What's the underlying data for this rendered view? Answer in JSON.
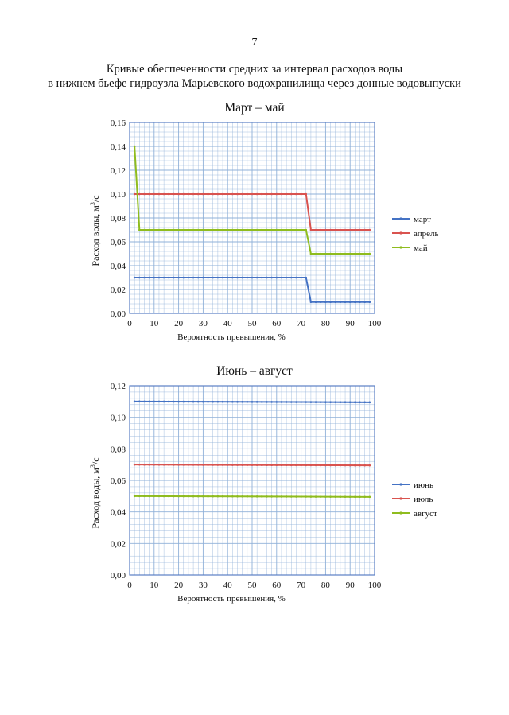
{
  "page": {
    "number": "7",
    "title_line1": "Кривые обеспеченности средних за интервал расходов воды",
    "title_line2": "в нижнем бьефе гидроузла Марьевского водохранилища через донные водовыпуски"
  },
  "colors": {
    "blue": "#4472c4",
    "red": "#d9534f",
    "green": "#8fbc1e",
    "grid": "#8fb0d8",
    "frame": "#5b7fc4"
  },
  "chart_data": [
    {
      "type": "line",
      "title": "Март – май",
      "xlabel": "Вероятность превышения, %",
      "ylabel_prefix": "Расход воды, м",
      "ylabel_sup": "3",
      "ylabel_suffix": "/с",
      "xlim": [
        0,
        100
      ],
      "ylim": [
        0,
        0.16
      ],
      "grid": true,
      "legend": "right",
      "x_ticks": [
        "0",
        "10",
        "20",
        "30",
        "40",
        "50",
        "60",
        "70",
        "80",
        "90",
        "100"
      ],
      "y_ticks": [
        "0,00",
        "0,02",
        "0,04",
        "0,06",
        "0,08",
        "0,10",
        "0,12",
        "0,14",
        "0,16"
      ],
      "series": [
        {
          "name": "март",
          "color": "#4472c4",
          "points": [
            [
              2,
              0.03
            ],
            [
              71,
              0.03
            ],
            [
              72,
              0.03
            ],
            [
              74,
              0.0095
            ],
            [
              98,
              0.0095
            ]
          ]
        },
        {
          "name": "апрель",
          "color": "#d9534f",
          "points": [
            [
              2,
              0.1
            ],
            [
              71,
              0.1
            ],
            [
              72,
              0.1
            ],
            [
              74,
              0.07
            ],
            [
              98,
              0.07
            ]
          ]
        },
        {
          "name": "май",
          "color": "#8fbc1e",
          "points": [
            [
              2,
              0.14
            ],
            [
              4,
              0.07
            ],
            [
              72,
              0.07
            ],
            [
              74,
              0.05
            ],
            [
              98,
              0.05
            ]
          ]
        }
      ]
    },
    {
      "type": "line",
      "title": "Июнь – август",
      "xlabel": "Вероятность превышения, %",
      "ylabel_prefix": "Расход воды, м",
      "ylabel_sup": "3",
      "ylabel_suffix": "/с",
      "xlim": [
        0,
        100
      ],
      "ylim": [
        0,
        0.12
      ],
      "grid": true,
      "legend": "right",
      "x_ticks": [
        "0",
        "10",
        "20",
        "30",
        "40",
        "50",
        "60",
        "70",
        "80",
        "90",
        "100"
      ],
      "y_ticks": [
        "0,00",
        "0,02",
        "0,04",
        "0,06",
        "0,08",
        "0,10",
        "0,12"
      ],
      "series": [
        {
          "name": "июнь",
          "color": "#4472c4",
          "points": [
            [
              2,
              0.11
            ],
            [
              98,
              0.1095
            ]
          ]
        },
        {
          "name": "июль",
          "color": "#d9534f",
          "points": [
            [
              2,
              0.07
            ],
            [
              98,
              0.0695
            ]
          ]
        },
        {
          "name": "август",
          "color": "#8fbc1e",
          "points": [
            [
              2,
              0.05
            ],
            [
              98,
              0.0495
            ]
          ]
        }
      ]
    }
  ]
}
